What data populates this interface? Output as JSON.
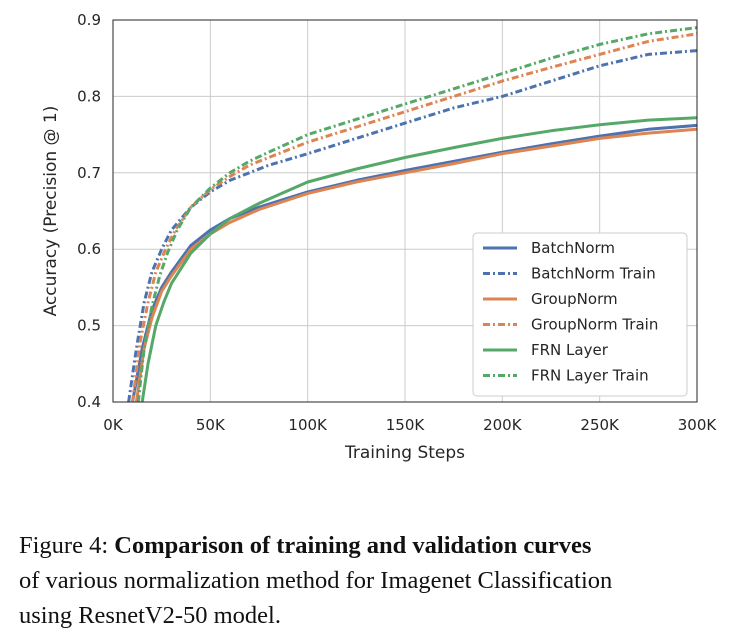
{
  "chart_data": {
    "type": "line",
    "xlabel": "Training Steps",
    "ylabel": "Accuracy (Precision @ 1)",
    "xlim": [
      0,
      300000
    ],
    "ylim": [
      0.4,
      0.9
    ],
    "x_ticks": [
      0,
      50000,
      100000,
      150000,
      200000,
      250000,
      300000
    ],
    "x_tick_labels": [
      "0K",
      "50K",
      "100K",
      "150K",
      "200K",
      "250K",
      "300K"
    ],
    "y_ticks": [
      0.4,
      0.5,
      0.6,
      0.7,
      0.8,
      0.9
    ],
    "y_tick_labels": [
      "0.4",
      "0.5",
      "0.6",
      "0.7",
      "0.8",
      "0.9"
    ],
    "grid": true,
    "legend_position": "lower-right",
    "series": [
      {
        "name": "BatchNorm",
        "color": "#4c72b0",
        "dash": "solid",
        "x": [
          10000,
          15000,
          20000,
          25000,
          30000,
          40000,
          50000,
          60000,
          75000,
          100000,
          125000,
          150000,
          175000,
          200000,
          225000,
          250000,
          275000,
          300000
        ],
        "y": [
          0.4,
          0.47,
          0.52,
          0.55,
          0.57,
          0.605,
          0.625,
          0.64,
          0.655,
          0.675,
          0.69,
          0.703,
          0.715,
          0.727,
          0.738,
          0.748,
          0.757,
          0.762
        ]
      },
      {
        "name": "BatchNorm Train",
        "color": "#4c72b0",
        "dash": "dashdot",
        "x": [
          8000,
          12000,
          16000,
          20000,
          25000,
          30000,
          40000,
          50000,
          60000,
          70000,
          80000,
          100000,
          125000,
          150000,
          175000,
          200000,
          225000,
          250000,
          275000,
          300000
        ],
        "y": [
          0.4,
          0.47,
          0.53,
          0.57,
          0.6,
          0.625,
          0.655,
          0.675,
          0.69,
          0.7,
          0.71,
          0.725,
          0.745,
          0.765,
          0.785,
          0.8,
          0.82,
          0.84,
          0.855,
          0.86
        ]
      },
      {
        "name": "GroupNorm",
        "color": "#dd8452",
        "dash": "solid",
        "x": [
          12000,
          16000,
          20000,
          25000,
          30000,
          40000,
          50000,
          60000,
          75000,
          100000,
          125000,
          150000,
          175000,
          200000,
          225000,
          250000,
          275000,
          300000
        ],
        "y": [
          0.4,
          0.47,
          0.51,
          0.545,
          0.565,
          0.6,
          0.62,
          0.635,
          0.652,
          0.673,
          0.688,
          0.7,
          0.712,
          0.725,
          0.735,
          0.745,
          0.752,
          0.757
        ]
      },
      {
        "name": "GroupNorm Train",
        "color": "#dd8452",
        "dash": "dashdot",
        "x": [
          10000,
          14000,
          18000,
          22000,
          27000,
          32000,
          40000,
          50000,
          60000,
          70000,
          80000,
          100000,
          125000,
          150000,
          175000,
          200000,
          225000,
          250000,
          275000,
          300000
        ],
        "y": [
          0.4,
          0.48,
          0.53,
          0.57,
          0.6,
          0.625,
          0.655,
          0.678,
          0.695,
          0.71,
          0.72,
          0.74,
          0.76,
          0.78,
          0.8,
          0.82,
          0.838,
          0.855,
          0.872,
          0.882
        ]
      },
      {
        "name": "FRN Layer",
        "color": "#55a868",
        "dash": "solid",
        "x": [
          15000,
          18000,
          22000,
          26000,
          30000,
          40000,
          50000,
          60000,
          75000,
          100000,
          125000,
          150000,
          175000,
          200000,
          225000,
          250000,
          275000,
          300000
        ],
        "y": [
          0.4,
          0.45,
          0.5,
          0.53,
          0.555,
          0.595,
          0.62,
          0.64,
          0.66,
          0.688,
          0.705,
          0.72,
          0.733,
          0.745,
          0.755,
          0.763,
          0.769,
          0.772
        ]
      },
      {
        "name": "FRN Layer Train",
        "color": "#55a868",
        "dash": "dashdot",
        "x": [
          13000,
          16000,
          20000,
          24000,
          28000,
          33000,
          40000,
          50000,
          60000,
          70000,
          80000,
          100000,
          125000,
          150000,
          175000,
          200000,
          225000,
          250000,
          275000,
          300000
        ],
        "y": [
          0.4,
          0.47,
          0.525,
          0.565,
          0.595,
          0.625,
          0.655,
          0.68,
          0.7,
          0.715,
          0.727,
          0.75,
          0.77,
          0.79,
          0.81,
          0.83,
          0.85,
          0.868,
          0.882,
          0.89
        ]
      }
    ]
  },
  "caption": {
    "label": "Figure 4:",
    "bold_text": "Comparison of training and validation curves",
    "rest_line1": "of various normalization method for Imagenet Classification",
    "rest_line2": "using ResnetV2-50 model."
  }
}
